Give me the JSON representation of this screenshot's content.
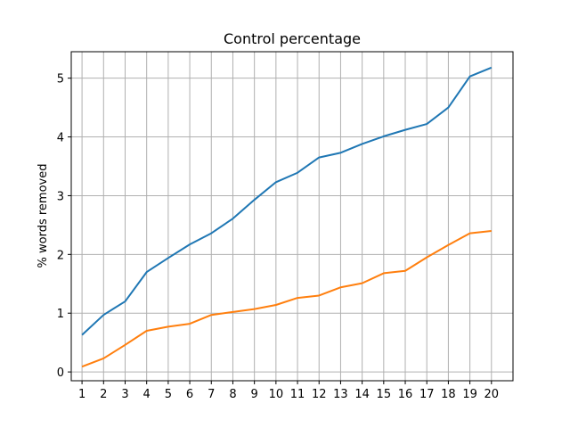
{
  "chart_data": {
    "type": "line",
    "title": "Control percentage",
    "xlabel": "",
    "ylabel": "% words removed",
    "x": [
      1,
      2,
      3,
      4,
      5,
      6,
      7,
      8,
      9,
      10,
      11,
      12,
      13,
      14,
      15,
      16,
      17,
      18,
      19,
      20
    ],
    "xlim": [
      0.5,
      21
    ],
    "ylim": [
      -0.15,
      5.45
    ],
    "yticks": [
      0,
      1,
      2,
      3,
      4,
      5
    ],
    "grid": true,
    "series": [
      {
        "color": "#1f77b4",
        "values": [
          0.63,
          0.97,
          1.2,
          1.7,
          1.94,
          2.17,
          2.36,
          2.61,
          2.93,
          3.23,
          3.39,
          3.65,
          3.73,
          3.88,
          4.01,
          4.12,
          4.22,
          4.5,
          5.03,
          5.18
        ]
      },
      {
        "color": "#ff7f0e",
        "values": [
          0.09,
          0.23,
          0.46,
          0.7,
          0.77,
          0.82,
          0.97,
          1.02,
          1.07,
          1.14,
          1.26,
          1.3,
          1.44,
          1.51,
          1.68,
          1.72,
          1.95,
          2.16,
          2.36,
          2.4
        ]
      }
    ]
  }
}
